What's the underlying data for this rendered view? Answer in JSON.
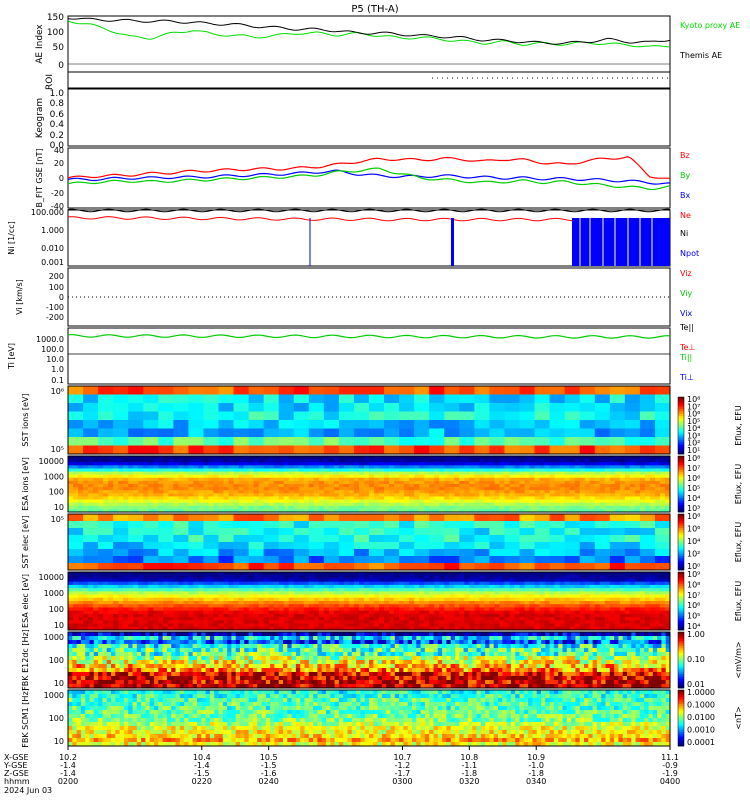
{
  "title": "P5 (TH-A)",
  "footer_date": "2024 Jun 03",
  "time_axis": {
    "x_range": [
      10.2,
      11.1
    ],
    "labels": [
      "X-GSE",
      "Y-GSE",
      "Z-GSE",
      "hhmm"
    ],
    "ticks": [
      {
        "x": 10.2,
        "vals": [
          "10.2",
          "-1.4",
          "-1.4",
          "0200"
        ]
      },
      {
        "x": 10.4,
        "vals": [
          "10.4",
          "-1.4",
          "-1.5",
          "0220"
        ]
      },
      {
        "x": 10.5,
        "vals": [
          "10.5",
          "-1.5",
          "-1.6",
          "0240"
        ]
      },
      {
        "x": 10.7,
        "vals": [
          "10.7",
          "-1.2",
          "-1.7",
          "0300"
        ]
      },
      {
        "x": 10.8,
        "vals": [
          "10.8",
          "-1.1",
          "-1.8",
          "0320"
        ]
      },
      {
        "x": 10.9,
        "vals": [
          "10.9",
          "-1.0",
          "-1.8",
          "0340"
        ]
      },
      {
        "x": 11.1,
        "vals": [
          "11.1",
          "-0.9",
          "-1.9",
          "0400"
        ]
      }
    ]
  },
  "colors": {
    "kyoto": "#00dd00",
    "themis": "#000000",
    "bz": "#ff0000",
    "by": "#00cc00",
    "bx": "#0000ff",
    "ne": "#ff0000",
    "npot": "#0000ff",
    "vi": "#000000",
    "ti": "#00cc00",
    "teperp": "#ff0000",
    "tiperp": "#0000ff"
  },
  "chart_data": [
    {
      "type": "line",
      "panel": "ae",
      "ylabel": "AE Index",
      "ylim": [
        -25,
        155
      ],
      "yticks": [
        "150",
        "100",
        "50",
        "0"
      ],
      "series": [
        {
          "name": "Kyoto proxy AE",
          "values": [
            140,
            128,
            110,
            88,
            84,
            99,
            110,
            96,
            93,
            87,
            92,
            100,
            100,
            94,
            99,
            92,
            84,
            86,
            80,
            74,
            68,
            72,
            64,
            67,
            64,
            70,
            65,
            63,
            55,
            60
          ]
        },
        {
          "name": "Themis AE",
          "values": [
            150,
            144,
            142,
            140,
            138,
            138,
            134,
            130,
            128,
            122,
            118,
            113,
            112,
            107,
            100,
            101,
            96,
            92,
            89,
            85,
            78,
            76,
            72,
            68,
            68,
            72,
            80,
            72,
            70,
            80
          ]
        }
      ]
    },
    {
      "type": "line",
      "panel": "roi",
      "ylabel": "ROI"
    },
    {
      "type": "line",
      "panel": "keogram",
      "ylabel": "Keogram",
      "ylim": [
        0,
        1
      ],
      "yticks": [
        "1.0",
        "0.8",
        "0.6",
        "0.4",
        "0.2",
        "0.0"
      ]
    },
    {
      "type": "line",
      "panel": "bfit",
      "ylabel": "B_FIT GSE [nT]",
      "ylim": [
        -40,
        40
      ],
      "yticks": [
        "40",
        "20",
        "0",
        "-20",
        "-40"
      ],
      "series": [
        {
          "name": "Bz",
          "values": [
            0,
            2,
            3,
            4,
            6,
            7,
            9,
            10,
            11,
            12,
            12,
            13,
            15,
            18,
            22,
            25,
            25,
            24,
            26,
            25,
            22,
            25,
            24,
            20,
            18,
            23,
            26,
            28,
            3,
            -2
          ]
        },
        {
          "name": "By",
          "values": [
            -8,
            -6,
            -5,
            -4,
            -5,
            -4,
            -3,
            -2,
            -1,
            0,
            1,
            2,
            4,
            8,
            10,
            12,
            6,
            0,
            -2,
            -4,
            -6,
            -5,
            -4,
            -6,
            -5,
            -8,
            -10,
            -12,
            -14,
            -12
          ]
        },
        {
          "name": "Bx",
          "values": [
            -2,
            -2,
            -1,
            0,
            0,
            1,
            1,
            2,
            3,
            4,
            5,
            6,
            8,
            9,
            5,
            3,
            2,
            2,
            3,
            2,
            1,
            0,
            0,
            -1,
            -1,
            -2,
            -3,
            -4,
            -6,
            -8
          ]
        }
      ]
    },
    {
      "type": "line",
      "panel": "ni",
      "ylabel": "Ni [1/cc]",
      "yticks": [
        "100.000",
        "1.000",
        "0.010",
        "0.001"
      ],
      "series": [
        {
          "name": "Ne",
          "values": [
            20,
            20,
            20,
            19,
            19,
            18,
            18,
            17,
            17,
            16,
            16,
            15,
            15,
            15,
            15,
            14,
            14,
            14,
            14,
            14,
            14,
            14,
            14,
            14,
            14,
            14,
            14,
            14,
            14,
            14
          ]
        },
        {
          "name": "Ni",
          "values": [
            90,
            90,
            90,
            90,
            90,
            90,
            90,
            90,
            90,
            90,
            90,
            90,
            90,
            90,
            90,
            90,
            90,
            90,
            90,
            90,
            90,
            90,
            90,
            90,
            90,
            90,
            90,
            90,
            90,
            90
          ]
        },
        {
          "name": "Npot"
        }
      ]
    },
    {
      "type": "line",
      "panel": "vi",
      "ylabel": "Vi [km/s]",
      "ylim": [
        -300,
        300
      ],
      "yticks": [
        "200",
        "100",
        "0",
        "-100",
        "-200"
      ],
      "series": [
        {
          "name": "Viz"
        },
        {
          "name": "Viy"
        },
        {
          "name": "Vix"
        }
      ]
    },
    {
      "type": "line",
      "panel": "ti",
      "ylabel": "Ti [eV]",
      "yticks": [
        "1000.0",
        "100.0",
        "10.0",
        "1.0",
        "0.1"
      ],
      "series": [
        {
          "name": "Te||"
        },
        {
          "name": "Te⊥"
        },
        {
          "name": "Ti||",
          "values": [
            700,
            700,
            690,
            690,
            680,
            680,
            670,
            670,
            660,
            660,
            650,
            650,
            640,
            640,
            630,
            630,
            620,
            620,
            610,
            610,
            600,
            600,
            600,
            590,
            590,
            590,
            580,
            580,
            580,
            580
          ]
        },
        {
          "name": "Ti⊥"
        }
      ]
    },
    {
      "type": "heatmap",
      "panel": "sst_i",
      "ylabel": "SST ions [eV]",
      "yticks": [
        "10⁶",
        "10⁵"
      ],
      "colorbar_label": "Eflux, EFU",
      "colorbar_ticks": [
        "10⁸",
        "10⁷",
        "10⁶",
        "10⁵",
        "10⁴",
        "10³",
        "10²",
        "10¹"
      ]
    },
    {
      "type": "heatmap",
      "panel": "esa_i",
      "ylabel": "ESA ions [eV]",
      "yticks": [
        "10000",
        "1000",
        "100",
        "10"
      ],
      "colorbar_label": "Eflux, EFU",
      "colorbar_ticks": [
        "10⁸",
        "10⁷",
        "10⁶",
        "10⁵",
        "10⁴",
        "10³"
      ]
    },
    {
      "type": "heatmap",
      "panel": "sst_e",
      "ylabel": "SST elec [eV]",
      "yticks": [
        "10⁵"
      ],
      "colorbar_label": "Eflux, EFU",
      "colorbar_ticks": [
        "10⁸",
        "10⁶",
        "10⁴",
        "10²",
        "10⁰"
      ]
    },
    {
      "type": "heatmap",
      "panel": "esa_e",
      "ylabel": "ESA elec [eV]",
      "yticks": [
        "10000",
        "1000",
        "100",
        "10"
      ],
      "colorbar_label": "Eflux, EFU",
      "colorbar_ticks": [
        "10⁹",
        "10⁸",
        "10⁷",
        "10⁶",
        "10⁵",
        "10⁴"
      ]
    },
    {
      "type": "heatmap",
      "panel": "fbk_e",
      "ylabel": "FBK E12dc [Hz]",
      "yticks": [
        "1000",
        "100",
        "10"
      ],
      "colorbar_label": "<mV/m>",
      "colorbar_ticks": [
        "1.00",
        "0.10",
        "0.01"
      ]
    },
    {
      "type": "heatmap",
      "panel": "fbk_b",
      "ylabel": "FBK SCM1 [Hz]",
      "yticks": [
        "1000",
        "100",
        "10"
      ],
      "colorbar_label": "<nT>",
      "colorbar_ticks": [
        "1.0000",
        "0.1000",
        "0.0100",
        "0.0010",
        "0.0001"
      ]
    }
  ]
}
